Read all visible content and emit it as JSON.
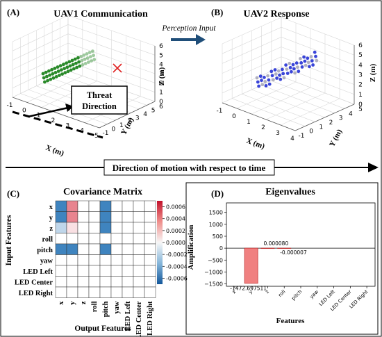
{
  "panels": {
    "a": {
      "label": "(A)",
      "title": "UAV1 Communication"
    },
    "b": {
      "label": "(B)",
      "title": "UAV2 Response"
    },
    "c": {
      "label": "(C)",
      "title": "Covariance Matrix"
    },
    "d": {
      "label": "(D)",
      "title": "Eigenvalues"
    }
  },
  "annotations": {
    "perception_input": "Perception Input",
    "threat_direction_line1": "Threat",
    "threat_direction_line2": "Direction",
    "time_banner": "Direction of motion with respect to time"
  },
  "axes3d": {
    "x_label": "X (m)",
    "y_label": "Y (m)",
    "z_label": "Z (m)",
    "a_x_ticks": [
      "-1",
      "0",
      "1",
      "2",
      "3",
      "4",
      "5"
    ],
    "a_y_ticks": [
      "-1",
      "0",
      "1",
      "2",
      "3",
      "4",
      "5",
      "6"
    ],
    "a_z_ticks": [
      "0",
      "1",
      "2",
      "3",
      "4",
      "5",
      "6"
    ],
    "b_x_ticks": [
      "-1",
      "0",
      "1",
      "2",
      "3",
      "4"
    ],
    "b_y_ticks": [
      "-1",
      "0",
      "1",
      "2",
      "3",
      "4",
      "5"
    ],
    "b_z_ticks": [
      "0",
      "1",
      "2",
      "3",
      "4",
      "5",
      "6"
    ]
  },
  "colors": {
    "uav1_points": "#2a8a2a",
    "uav2_points_primary": "#3a45d8",
    "uav2_points_secondary": "#b0b0c0",
    "threat_marker": "#e02020",
    "arrow_blue": "#1f4e79",
    "heat_positive": "#d6273b",
    "heat_negative": "#1f6fb4",
    "bar_fill": "#f08080",
    "bar_edge": "#c03030"
  },
  "chart_data": [
    {
      "type": "heatmap",
      "title": "Covariance Matrix",
      "xlabel": "Output Features",
      "ylabel": "Input Features",
      "row_labels": [
        "x",
        "y",
        "z",
        "roll",
        "pitch",
        "yaw",
        "LED Left",
        "LED Center",
        "LED Right"
      ],
      "col_labels": [
        "x",
        "y",
        "z",
        "roll",
        "pitch",
        "yaw",
        "LED Left",
        "LED Center",
        "LED Right"
      ],
      "values": [
        [
          -0.0006,
          0.0004,
          0,
          0,
          -0.0006,
          0,
          0,
          0,
          0
        ],
        [
          -0.0006,
          0.0004,
          0,
          0,
          -0.0006,
          0,
          0,
          0,
          0
        ],
        [
          -0.0002,
          0.0001,
          0,
          0,
          -0.0006,
          0,
          0,
          0,
          0
        ],
        [
          0,
          0,
          0,
          0,
          0,
          0,
          0,
          0,
          0
        ],
        [
          -0.0006,
          -0.0006,
          0,
          0,
          -0.0006,
          0,
          0,
          0,
          0
        ],
        [
          0,
          0,
          0,
          0,
          0,
          0,
          0,
          0,
          0
        ],
        [
          0,
          0,
          0,
          0,
          0,
          0,
          0,
          0,
          0
        ],
        [
          0,
          0,
          0,
          0,
          0,
          0,
          0,
          0,
          0
        ],
        [
          0,
          0,
          0,
          0,
          0,
          0,
          0,
          0,
          0
        ]
      ],
      "vmin": -0.0007,
      "vmax": 0.0007,
      "colorbar_ticks": [
        "0.0006",
        "0.0004",
        "0.0002",
        "0.0000",
        "-0.0002",
        "-0.0004",
        "-0.0006"
      ],
      "colorbar_values": [
        0.0006,
        0.0004,
        0.0002,
        0,
        -0.0002,
        -0.0004,
        -0.0006
      ]
    },
    {
      "type": "bar",
      "title": "Eigenvalues",
      "xlabel": "Features",
      "ylabel": "Amplification",
      "categories": [
        "x",
        "y",
        "z",
        "roll",
        "pitch",
        "yaw",
        "LED Left",
        "LED Center",
        "LED Right"
      ],
      "values": [
        0,
        -1472.697511,
        8e-05,
        -7e-06,
        0,
        0,
        0,
        0,
        0
      ],
      "data_labels": [
        "",
        "-1472.697511",
        "0.000080",
        "-0.000007",
        "",
        "",
        "",
        "",
        ""
      ],
      "ylim": [
        -1600,
        1900
      ],
      "yticks": [
        1500,
        1000,
        500,
        0,
        -500,
        -1000,
        -1500
      ],
      "ytick_labels": [
        "1500",
        "1000",
        "500",
        "0",
        "−500",
        "−1000",
        "−1500"
      ]
    }
  ]
}
